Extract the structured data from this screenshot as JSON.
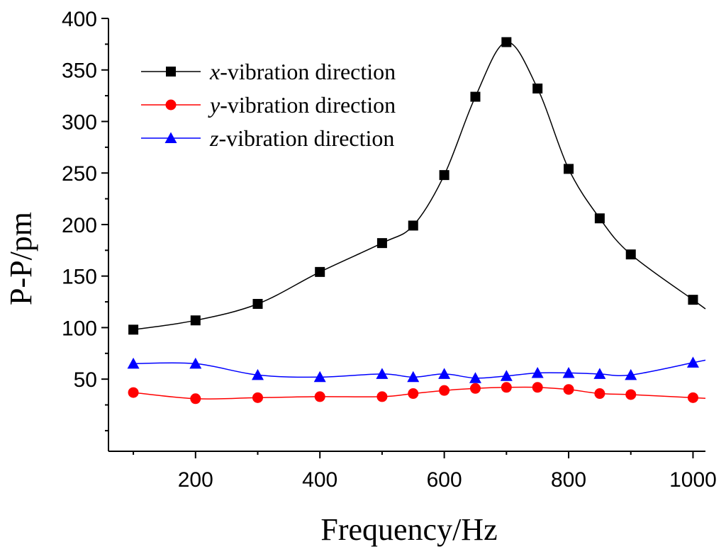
{
  "chart_data": {
    "type": "line",
    "title": "",
    "xlabel": "Frequency/Hz",
    "ylabel": "P-P/pm",
    "xlim": [
      60,
      1020
    ],
    "ylim": [
      -20,
      400
    ],
    "xticks": [
      200,
      400,
      600,
      800,
      1000
    ],
    "xtick_labels": [
      "200",
      "400",
      "600",
      "800",
      "1000"
    ],
    "yticks": [
      50,
      100,
      150,
      200,
      250,
      300,
      350,
      400
    ],
    "ytick_labels": [
      "50",
      "100",
      "150",
      "200",
      "250",
      "300",
      "350",
      "400"
    ],
    "legend_position": "top-left",
    "series": [
      {
        "name": "x-vibration direction",
        "name_var": "x",
        "name_rest": "-vibration direction",
        "color": "#000000",
        "marker": "square",
        "x": [
          100,
          200,
          300,
          400,
          500,
          550,
          600,
          650,
          700,
          750,
          800,
          850,
          900,
          1000
        ],
        "y": [
          98,
          107,
          123,
          154,
          182,
          199,
          248,
          324,
          377,
          332,
          254,
          206,
          171,
          127
        ]
      },
      {
        "name": "y-vibration direction",
        "name_var": "y",
        "name_rest": "-vibration direction",
        "color": "#ff0000",
        "marker": "circle",
        "x": [
          100,
          200,
          300,
          400,
          500,
          550,
          600,
          650,
          700,
          750,
          800,
          850,
          900,
          1000
        ],
        "y": [
          37,
          31,
          32,
          33,
          33,
          36,
          39,
          41,
          42,
          42,
          40,
          36,
          35,
          32
        ]
      },
      {
        "name": "z-vibration direction",
        "name_var": "z",
        "name_rest": "-vibration direction",
        "color": "#0000ff",
        "marker": "triangle",
        "x": [
          100,
          200,
          300,
          400,
          500,
          550,
          600,
          650,
          700,
          750,
          800,
          850,
          900,
          1000
        ],
        "y": [
          65,
          65,
          54,
          52,
          55,
          52,
          55,
          51,
          53,
          56,
          56,
          55,
          54,
          66
        ]
      }
    ]
  }
}
